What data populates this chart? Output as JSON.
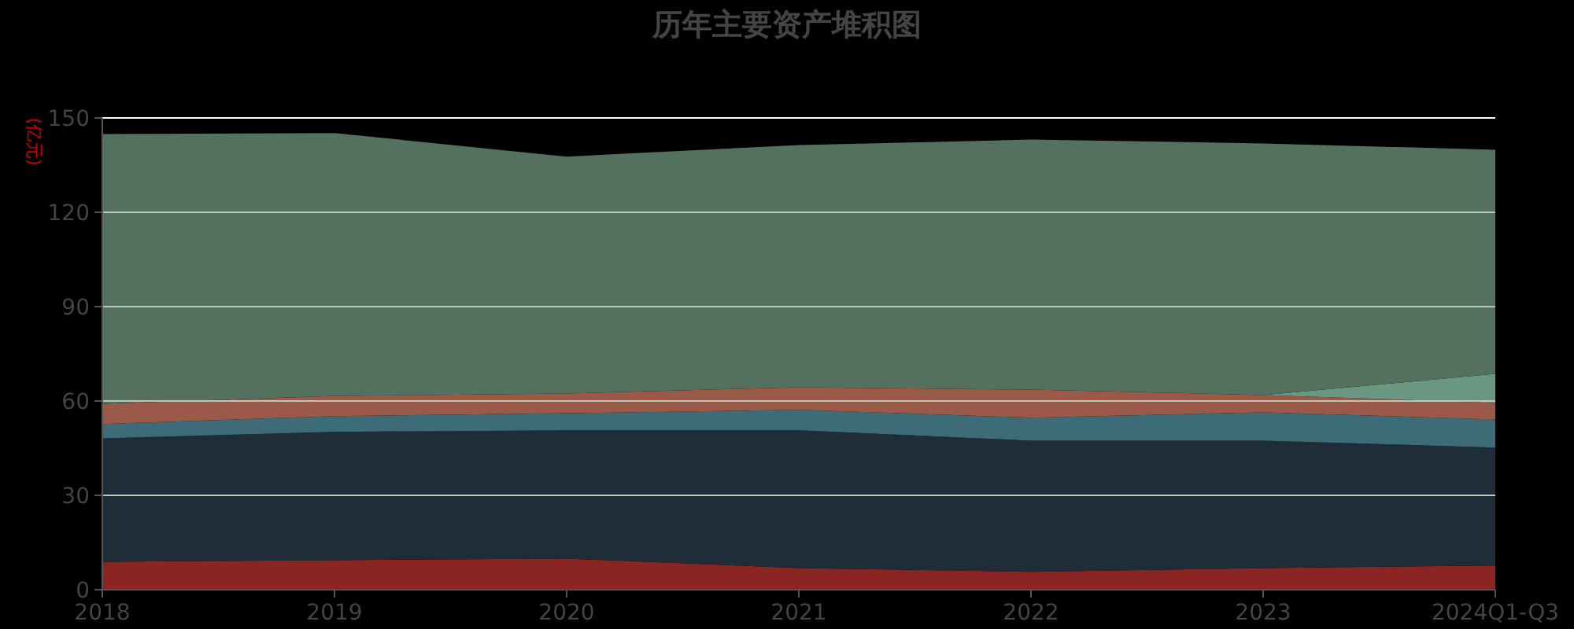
{
  "chart_data": {
    "type": "area",
    "stacked": true,
    "title": "历年主要资产堆积图",
    "ylabel": "(亿元)",
    "categories": [
      "2018",
      "2019",
      "2020",
      "2021",
      "2022",
      "2023",
      "2024Q1-Q3"
    ],
    "series": [
      {
        "color": "#8b2523",
        "values": [
          8.9,
          9.4,
          9.9,
          6.9,
          5.7,
          6.9,
          7.7
        ]
      },
      {
        "color": "#1f2d38",
        "values": [
          39.2,
          40.8,
          40.8,
          43.8,
          41.7,
          40.5,
          37.5
        ]
      },
      {
        "color": "#3d6b78",
        "values": [
          4.6,
          5.0,
          5.4,
          6.5,
          7.3,
          9.0,
          8.9
        ]
      },
      {
        "color": "#9b5a48",
        "values": [
          6.4,
          6.4,
          6.3,
          7.2,
          8.9,
          5.5,
          5.3
        ]
      },
      {
        "color": "#6a9782",
        "values": [
          0,
          0,
          0,
          0,
          0,
          0,
          9.2
        ]
      },
      {
        "color": "#54715f",
        "values": [
          85.8,
          83.6,
          75.3,
          77.0,
          79.5,
          80.0,
          71.3
        ]
      }
    ],
    "ylim": [
      0,
      150
    ],
    "yticks": [
      0,
      30,
      60,
      90,
      120,
      150
    ],
    "grid": "y"
  }
}
